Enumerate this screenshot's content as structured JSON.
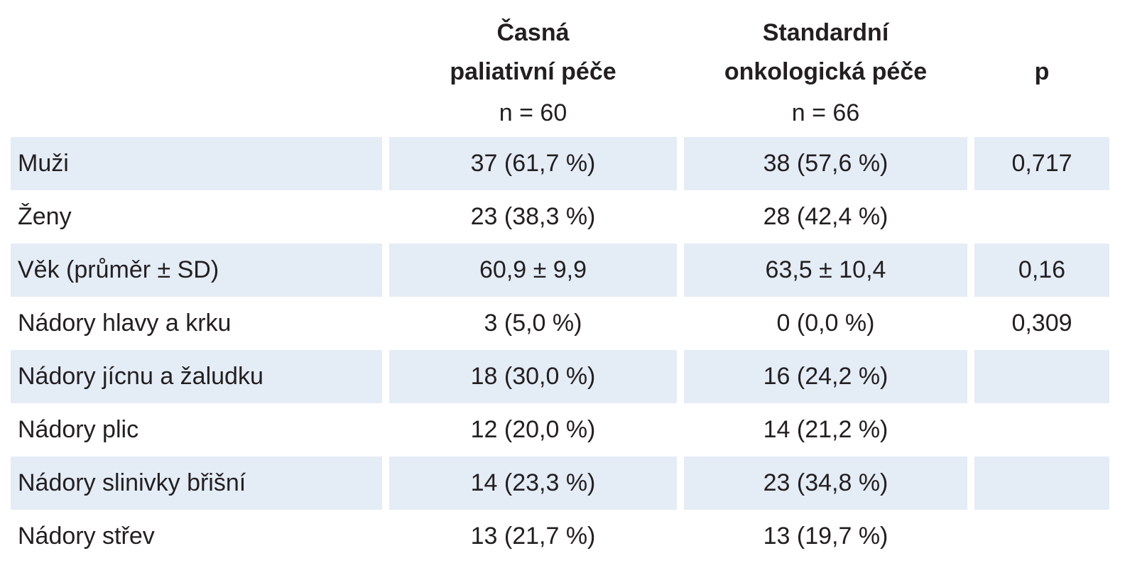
{
  "table": {
    "header": [
      {
        "lines": [
          "Časná",
          "paliativní péče"
        ],
        "n": "n = 60"
      },
      {
        "lines": [
          "Standardní",
          "onkologická péče"
        ],
        "n": "n = 66"
      },
      {
        "lines": [
          "p"
        ]
      }
    ],
    "rows": [
      [
        "Muži",
        "37 (61,7 %)",
        "38 (57,6 %)",
        "0,717"
      ],
      [
        "Ženy",
        "23 (38,3 %)",
        "28 (42,4 %)",
        null
      ],
      [
        "Věk (průměr ± SD)",
        "60,9 ± 9,9",
        "63,5 ± 10,4",
        "0,16"
      ],
      [
        "Nádory hlavy a krku",
        "3 (5,0 %)",
        "0 (0,0 %)",
        "0,309"
      ],
      [
        "Nádory jícnu a žaludku",
        "18 (30,0 %)",
        "16 (24,2 %)",
        null
      ],
      [
        "Nádory plic",
        "12 (20,0 %)",
        "14 (21,2 %)",
        null
      ],
      [
        "Nádory slinivky břišní",
        "14 (23,3 %)",
        "23 (34,8 %)",
        null
      ],
      [
        "Nádory střev",
        "13 (21,7 %)",
        "13 (19,7 %)",
        null
      ]
    ]
  }
}
